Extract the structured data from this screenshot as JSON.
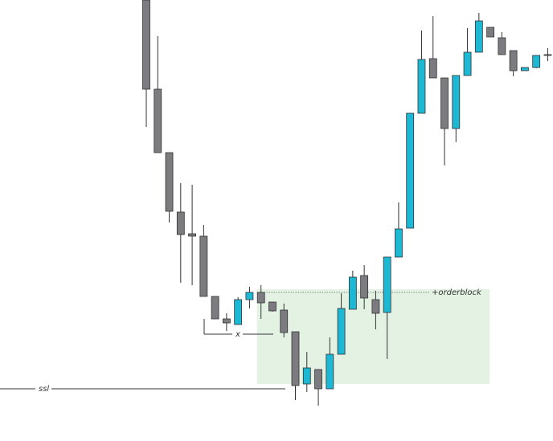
{
  "chart_data": {
    "type": "candlestick",
    "ylim": [
      0,
      549
    ],
    "up_color": "#1cb8d4",
    "down_color": "#7b7b80",
    "candles": [
      {
        "open": 549,
        "high": 549,
        "low": 391,
        "close": 438
      },
      {
        "open": 438,
        "high": 504,
        "low": 359,
        "close": 359
      },
      {
        "open": 359,
        "high": 359,
        "low": 272,
        "close": 286
      },
      {
        "open": 285,
        "high": 321,
        "low": 197,
        "close": 257
      },
      {
        "open": 258,
        "high": 319,
        "low": 194,
        "close": 255
      },
      {
        "open": 255,
        "high": 269,
        "low": 180,
        "close": 180
      },
      {
        "open": 180,
        "high": 180,
        "low": 152,
        "close": 152
      },
      {
        "open": 152,
        "high": 159,
        "low": 137,
        "close": 147
      },
      {
        "open": 145,
        "high": 179,
        "low": 145,
        "close": 176
      },
      {
        "open": 176,
        "high": 192,
        "low": 165,
        "close": 185
      },
      {
        "open": 185,
        "high": 194,
        "low": 152,
        "close": 172
      },
      {
        "open": 173,
        "high": 173,
        "low": 161,
        "close": 162
      },
      {
        "open": 163,
        "high": 171,
        "low": 129,
        "close": 135
      },
      {
        "open": 136,
        "high": 136,
        "low": 51,
        "close": 69
      },
      {
        "open": 71,
        "high": 111,
        "low": 61,
        "close": 91
      },
      {
        "open": 89,
        "high": 89,
        "low": 44,
        "close": 65
      },
      {
        "open": 65,
        "high": 129,
        "low": 65,
        "close": 108
      },
      {
        "open": 108,
        "high": 184,
        "low": 108,
        "close": 165
      },
      {
        "open": 164,
        "high": 212,
        "low": 164,
        "close": 204
      },
      {
        "open": 206,
        "high": 219,
        "low": 164,
        "close": 178
      },
      {
        "open": 176,
        "high": 187,
        "low": 139,
        "close": 159
      },
      {
        "open": 160,
        "high": 229,
        "low": 102,
        "close": 229
      },
      {
        "open": 229,
        "high": 297,
        "low": 229,
        "close": 264
      },
      {
        "open": 265,
        "high": 408,
        "low": 265,
        "close": 408
      },
      {
        "open": 408,
        "high": 511,
        "low": 408,
        "close": 475
      },
      {
        "open": 476,
        "high": 529,
        "low": 452,
        "close": 452
      },
      {
        "open": 452,
        "high": 452,
        "low": 343,
        "close": 389
      },
      {
        "open": 389,
        "high": 455,
        "low": 372,
        "close": 455
      },
      {
        "open": 455,
        "high": 514,
        "low": 455,
        "close": 484
      },
      {
        "open": 484,
        "high": 533,
        "low": 484,
        "close": 523
      },
      {
        "open": 515,
        "high": 515,
        "low": 503,
        "close": 503
      },
      {
        "open": 502,
        "high": 509,
        "low": 481,
        "close": 481
      },
      {
        "open": 486,
        "high": 486,
        "low": 454,
        "close": 461
      },
      {
        "open": 461,
        "high": 465,
        "low": 461,
        "close": 465
      },
      {
        "open": 465,
        "high": 480,
        "low": 464,
        "close": 480
      },
      {
        "open": 481,
        "high": 489,
        "low": 473,
        "close": 480
      }
    ],
    "orderblock": {
      "label": "+orderblock",
      "top": 189,
      "bottom": 71,
      "color": "#e3f2e3"
    },
    "ssl": {
      "label": "ssl",
      "value": 65
    },
    "x_level": {
      "label": "x",
      "value": 133
    }
  }
}
